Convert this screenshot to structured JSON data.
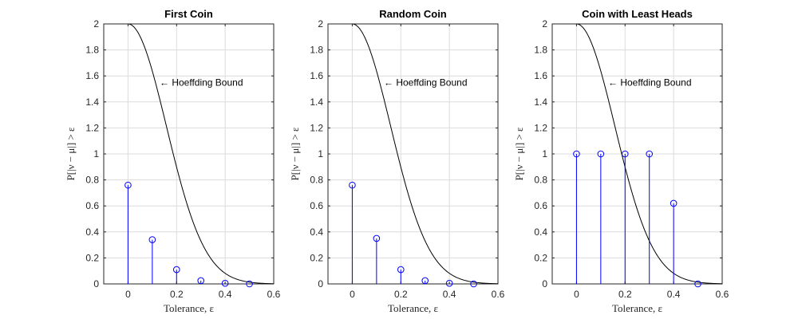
{
  "chart_data": [
    {
      "type": "stem",
      "title": "First Coin",
      "xlabel": "Tolerance, ε",
      "ylabel": "P[|ν − μ|] > ε",
      "xlim": [
        -0.1,
        0.6
      ],
      "ylim": [
        0,
        2
      ],
      "xticks": [
        "0",
        "0.2",
        "0.4",
        "0.6"
      ],
      "yticks": [
        "0",
        "0.2",
        "0.4",
        "0.6",
        "0.8",
        "1",
        "1.2",
        "1.4",
        "1.6",
        "1.8",
        "2"
      ],
      "grid": true,
      "stem_series": {
        "x": [
          0,
          0.1,
          0.2,
          0.3,
          0.4,
          0.5
        ],
        "y": [
          0.76,
          0.34,
          0.11,
          0.025,
          0.005,
          0.0
        ],
        "color": "#0000ff"
      },
      "bound_curve": {
        "formula": "2*exp(-2*N*eps^2)",
        "N": 10,
        "color": "#000000"
      },
      "annotation": {
        "text": "← Hoeffding Bound",
        "x": 0.13,
        "y": 1.55
      }
    },
    {
      "type": "stem",
      "title": "Random Coin",
      "xlabel": "Tolerance, ε",
      "ylabel": "P[|ν − μ|] > ε",
      "xlim": [
        -0.1,
        0.6
      ],
      "ylim": [
        0,
        2
      ],
      "xticks": [
        "0",
        "0.2",
        "0.4",
        "0.6"
      ],
      "yticks": [
        "0",
        "0.2",
        "0.4",
        "0.6",
        "0.8",
        "1",
        "1.2",
        "1.4",
        "1.6",
        "1.8",
        "2"
      ],
      "grid": true,
      "stem_series": {
        "x": [
          0,
          0.1,
          0.2,
          0.3,
          0.4,
          0.5
        ],
        "y": [
          0.76,
          0.35,
          0.11,
          0.025,
          0.005,
          0.0
        ],
        "color": "#0000ff"
      },
      "bound_curve": {
        "formula": "2*exp(-2*N*eps^2)",
        "N": 10,
        "color": "#000000"
      },
      "annotation": {
        "text": "← Hoeffding Bound",
        "x": 0.13,
        "y": 1.55
      }
    },
    {
      "type": "stem",
      "title": "Coin with Least Heads",
      "xlabel": "Tolerance, ε",
      "ylabel": "P[|ν − μ|] > ε",
      "xlim": [
        -0.1,
        0.6
      ],
      "ylim": [
        0,
        2
      ],
      "xticks": [
        "0",
        "0.2",
        "0.4",
        "0.6"
      ],
      "yticks": [
        "0",
        "0.2",
        "0.4",
        "0.6",
        "0.8",
        "1",
        "1.2",
        "1.4",
        "1.6",
        "1.8",
        "2"
      ],
      "grid": true,
      "stem_series": {
        "x": [
          0,
          0.1,
          0.2,
          0.3,
          0.4,
          0.5
        ],
        "y": [
          1.0,
          1.0,
          1.0,
          1.0,
          0.62,
          0.0
        ],
        "color": "#0000ff"
      },
      "bound_curve": {
        "formula": "2*exp(-2*N*eps^2)",
        "N": 10,
        "color": "#000000"
      },
      "annotation": {
        "text": "← Hoeffding Bound",
        "x": 0.13,
        "y": 1.55
      }
    }
  ]
}
